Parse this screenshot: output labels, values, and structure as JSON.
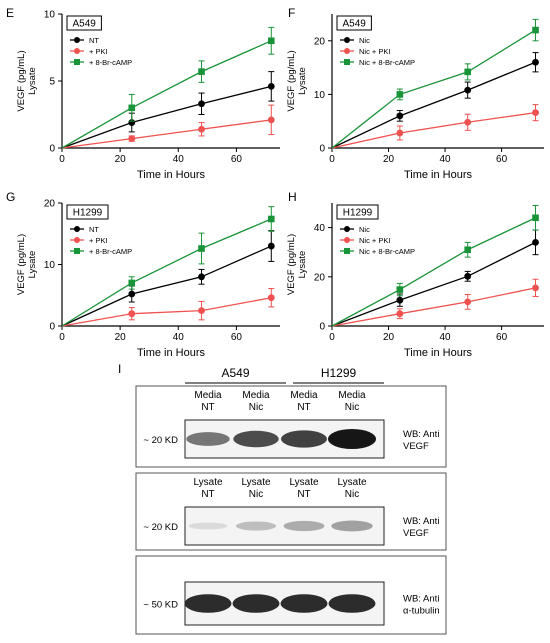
{
  "chart_data": [
    {
      "panel": "E",
      "type": "line",
      "cell_line": "A549",
      "xlabel": "Time in Hours",
      "ylabel": "VEGF (pg/mL)",
      "ylabel2": "Lysate",
      "xlim": [
        0,
        75
      ],
      "ylim": [
        0,
        10
      ],
      "xticks": [
        0,
        20,
        40,
        60
      ],
      "yticks": [
        0,
        5,
        10
      ],
      "series": [
        {
          "name": "NT",
          "color": "#000000",
          "marker": "circle",
          "x": [
            0,
            24,
            48,
            72
          ],
          "y": [
            0,
            1.9,
            3.3,
            4.6
          ],
          "err": [
            0,
            0.7,
            0.8,
            1.1
          ]
        },
        {
          "name": "+ PKI",
          "color": "#f0524f",
          "marker": "circle",
          "x": [
            0,
            24,
            48,
            72
          ],
          "y": [
            0,
            0.7,
            1.4,
            2.1
          ],
          "err": [
            0,
            0.2,
            0.5,
            1.1
          ]
        },
        {
          "name": "+ 8-Br-cAMP",
          "color": "#1a9438",
          "marker": "square",
          "x": [
            0,
            24,
            48,
            72
          ],
          "y": [
            0,
            3.0,
            5.7,
            8.0
          ],
          "err": [
            0,
            1.0,
            0.8,
            1.0
          ]
        }
      ]
    },
    {
      "panel": "F",
      "type": "line",
      "cell_line": "A549",
      "xlabel": "Time in Hours",
      "ylabel": "VEGF (pg/mL)",
      "ylabel2": "Lysate",
      "xlim": [
        0,
        75
      ],
      "ylim": [
        0,
        25
      ],
      "xticks": [
        0,
        20,
        40,
        60
      ],
      "yticks": [
        0,
        10,
        20
      ],
      "series": [
        {
          "name": "Nic",
          "color": "#000000",
          "marker": "circle",
          "x": [
            0,
            24,
            48,
            72
          ],
          "y": [
            0,
            6.0,
            10.8,
            16.0
          ],
          "err": [
            0,
            1.0,
            1.5,
            1.8
          ]
        },
        {
          "name": "Nic + PKI",
          "color": "#f0524f",
          "marker": "circle",
          "x": [
            0,
            24,
            48,
            72
          ],
          "y": [
            0,
            2.8,
            4.8,
            6.6
          ],
          "err": [
            0,
            1.3,
            1.5,
            1.5
          ]
        },
        {
          "name": "Nic + 8-Br-cAMP",
          "color": "#1a9438",
          "marker": "square",
          "x": [
            0,
            24,
            48,
            72
          ],
          "y": [
            0,
            10.0,
            14.2,
            22.0
          ],
          "err": [
            0,
            1.0,
            1.5,
            2.0
          ]
        }
      ]
    },
    {
      "panel": "G",
      "type": "line",
      "cell_line": "H1299",
      "xlabel": "Time in Hours",
      "ylabel": "VEGF (pg/mL)",
      "ylabel2": "Lysate",
      "xlim": [
        0,
        75
      ],
      "ylim": [
        0,
        20
      ],
      "xticks": [
        0,
        20,
        40,
        60
      ],
      "yticks": [
        0,
        10,
        20
      ],
      "series": [
        {
          "name": "NT",
          "color": "#000000",
          "marker": "circle",
          "x": [
            0,
            24,
            48,
            72
          ],
          "y": [
            0,
            5.2,
            8.0,
            13.0
          ],
          "err": [
            0,
            1.3,
            1.2,
            2.5
          ]
        },
        {
          "name": "+ PKI",
          "color": "#f0524f",
          "marker": "circle",
          "x": [
            0,
            24,
            48,
            72
          ],
          "y": [
            0,
            2.0,
            2.5,
            4.6
          ],
          "err": [
            0,
            1.0,
            1.5,
            1.5
          ]
        },
        {
          "name": "+ 8-Br-cAMP",
          "color": "#1a9438",
          "marker": "square",
          "x": [
            0,
            24,
            48,
            72
          ],
          "y": [
            0,
            7.0,
            12.6,
            17.4
          ],
          "err": [
            0,
            1.0,
            2.5,
            2.0
          ]
        }
      ]
    },
    {
      "panel": "H",
      "type": "line",
      "cell_line": "H1299",
      "xlabel": "Time in Hours",
      "ylabel": "VEGF (pg/mL)",
      "ylabel2": "Lysate",
      "xlim": [
        0,
        75
      ],
      "ylim": [
        0,
        50
      ],
      "xticks": [
        0,
        20,
        40,
        60
      ],
      "yticks": [
        0,
        20,
        40
      ],
      "series": [
        {
          "name": "Nic",
          "color": "#000000",
          "marker": "circle",
          "x": [
            0,
            24,
            48,
            72
          ],
          "y": [
            0,
            10.5,
            20.2,
            34.0
          ],
          "err": [
            0,
            2.5,
            2.0,
            5.0
          ]
        },
        {
          "name": "Nic + PKI",
          "color": "#f0524f",
          "marker": "circle",
          "x": [
            0,
            24,
            48,
            72
          ],
          "y": [
            0,
            5.0,
            9.8,
            15.5
          ],
          "err": [
            0,
            2.0,
            3.0,
            3.5
          ]
        },
        {
          "name": "Nic + 8-Br-cAMP",
          "color": "#1a9438",
          "marker": "square",
          "x": [
            0,
            24,
            48,
            72
          ],
          "y": [
            0,
            14.8,
            31.0,
            44.0
          ],
          "err": [
            0,
            2.5,
            3.0,
            5.0
          ]
        }
      ]
    }
  ],
  "western_blot": {
    "panel": "I",
    "groups": [
      {
        "label": "A549"
      },
      {
        "label": "H1299"
      }
    ],
    "blots": [
      {
        "name": "media-vegf",
        "lanes": [
          {
            "line1": "Media",
            "line2": "NT",
            "intensity": 0.55
          },
          {
            "line1": "Media",
            "line2": "Nic",
            "intensity": 0.75
          },
          {
            "line1": "Media",
            "line2": "NT",
            "intensity": 0.8
          },
          {
            "line1": "Media",
            "line2": "Nic",
            "intensity": 1.0
          }
        ],
        "marker": "~ 20 KD",
        "wb_line1": "WB: Anti",
        "wb_line2": "VEGF"
      },
      {
        "name": "lysate-vegf",
        "lanes": [
          {
            "line1": "Lysate",
            "line2": "NT",
            "intensity": 0.08
          },
          {
            "line1": "Lysate",
            "line2": "Nic",
            "intensity": 0.22
          },
          {
            "line1": "Lysate",
            "line2": "NT",
            "intensity": 0.3
          },
          {
            "line1": "Lysate",
            "line2": "Nic",
            "intensity": 0.35
          }
        ],
        "marker": "~ 20 KD",
        "wb_line1": "WB: Anti",
        "wb_line2": "VEGF"
      },
      {
        "name": "tubulin",
        "lanes": [
          {
            "line1": "",
            "line2": "",
            "intensity": 0.9
          },
          {
            "line1": "",
            "line2": "",
            "intensity": 0.9
          },
          {
            "line1": "",
            "line2": "",
            "intensity": 0.9
          },
          {
            "line1": "",
            "line2": "",
            "intensity": 0.9
          }
        ],
        "marker": "~ 50 KD",
        "wb_line1": "WB: Anti",
        "wb_line2": "α-tubulin"
      }
    ]
  }
}
